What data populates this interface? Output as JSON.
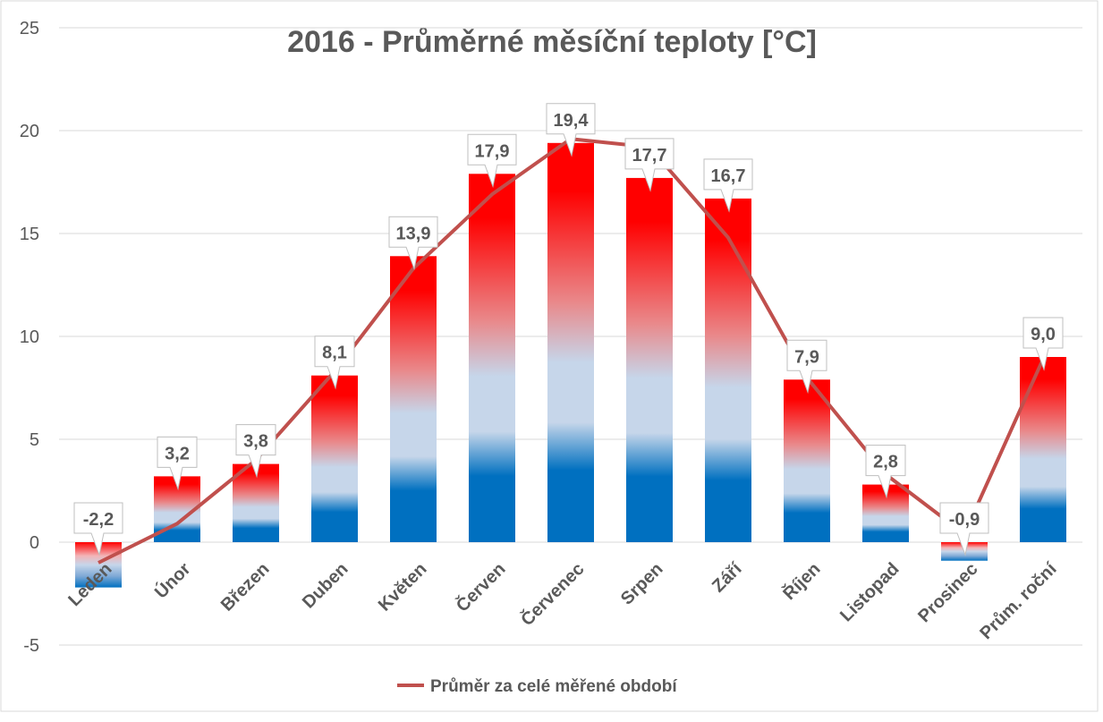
{
  "chart_data": {
    "type": "bar",
    "title": "2016 - Průměrné měsíční teploty [°C]",
    "categories": [
      "Leden",
      "Únor",
      "Březen",
      "Duben",
      "Květen",
      "Červen",
      "Červenec",
      "Srpen",
      "Září",
      "Říjen",
      "Listopad",
      "Prosinec",
      "Prům. roční"
    ],
    "series": [
      {
        "name": "2016",
        "type": "bar",
        "values": [
          -2.2,
          3.2,
          3.8,
          8.1,
          13.9,
          17.9,
          19.4,
          17.7,
          16.7,
          7.9,
          2.8,
          -0.9,
          9.0
        ],
        "data_labels": [
          "-2,2",
          "3,2",
          "3,8",
          "8,1",
          "13,9",
          "17,9",
          "19,4",
          "17,7",
          "16,7",
          "7,9",
          "2,8",
          "-0,9",
          "9,0"
        ]
      },
      {
        "name": "Průměr za celé měřené období",
        "type": "line",
        "color": "#c0504d",
        "values": [
          -1.0,
          0.9,
          4.0,
          8.3,
          13.3,
          16.9,
          19.6,
          19.2,
          14.8,
          8.0,
          3.3,
          0.4,
          8.9
        ]
      }
    ],
    "yticks": [
      "25",
      "20",
      "15",
      "10",
      "5",
      "0",
      "-5"
    ],
    "ylim": [
      -5,
      25
    ],
    "xlabel": "",
    "ylabel": "",
    "legend": {
      "position": "bottom",
      "label": "Průměr za celé měřené období"
    },
    "colors": {
      "warm": "#ff0000",
      "mid": "#c6d6ea",
      "cold": "#0070c0",
      "line": "#c0504d",
      "grid": "#d9d9d9",
      "text": "#595959"
    }
  }
}
